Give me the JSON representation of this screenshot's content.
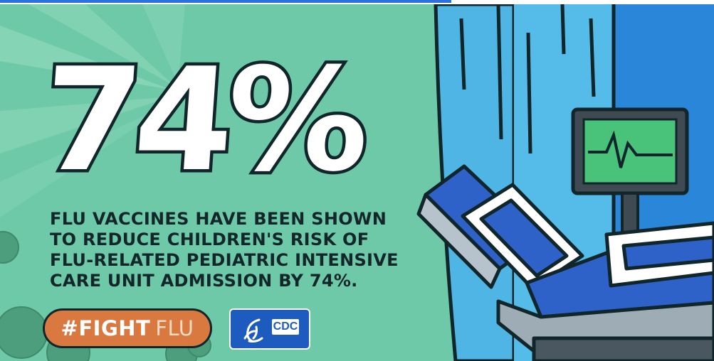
{
  "headline": {
    "value": "74%"
  },
  "message": {
    "lines": [
      "FLU VACCINES HAVE BEEN SHOWN",
      "TO REDUCE CHILDREN'S RISK OF",
      "FLU-RELATED PEDIATRIC INTENSIVE",
      "CARE UNIT ADMISSION BY 74%."
    ]
  },
  "hashtag": {
    "label_bold": "#FIGHT",
    "label_light": "FLU"
  },
  "logo": {
    "text": "CDC",
    "icon": "hhs-eagle-icon"
  },
  "colors": {
    "background": "#6ec9a8",
    "curtain": "#4fb5e4",
    "window": "#2a86d9",
    "badge": "#d9793f",
    "logo": "#1d5bbf",
    "monitor_screen": "#49c37a",
    "outline": "#10262a"
  }
}
